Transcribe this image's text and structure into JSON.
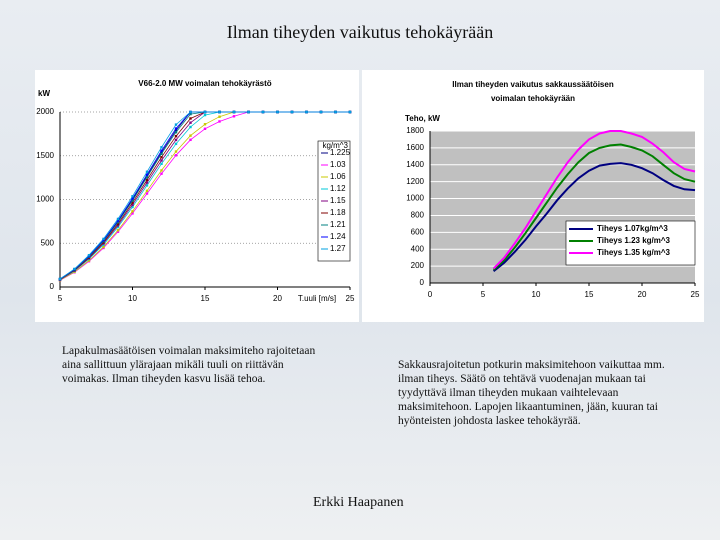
{
  "slide": {
    "title": "Ilman tiheyden vaikutus tehokäyrään",
    "caption_left": "Lapakulmasäätöisen voimalan maksimiteho rajoitetaan aina sallittuun ylärajaan mikäli tuuli on riittävän voimakas. Ilman tiheyden kasvu lisää tehoa.",
    "caption_right": "Sakkausrajoitetun potkurin maksimitehoon vaikuttaa mm. ilman tiheys. Säätö on tehtävä vuodenajan mukaan tai tyydyttävä ilman tiheyden mukaan vaihtelevaan maksimitehoon. Lapojen likaantuminen, jään, kuuran tai hyönteisten johdosta laskee tehokäyrää.",
    "author": "Erkki Haapanen"
  },
  "chart_data": [
    {
      "type": "line",
      "title": [
        "V66-2.0 MW voimalan tehokäyrästö"
      ],
      "y_label": "kW",
      "x_label": "T.uuli [m/s]",
      "legend_title": "kg/m^3",
      "legend": "right",
      "grid": true,
      "markers": true,
      "xlim": [
        5,
        25
      ],
      "xticks": [
        5,
        10,
        15,
        20,
        25
      ],
      "ylim": [
        0,
        2000
      ],
      "yticks": [
        0,
        500,
        1000,
        1500,
        2000
      ],
      "x": [
        5,
        6,
        7,
        8,
        9,
        10,
        11,
        12,
        13,
        14,
        15,
        16,
        17,
        18,
        19,
        20,
        21,
        22,
        23,
        24,
        25
      ],
      "series": [
        {
          "name": "1.225",
          "color": "#000080",
          "values": [
            90,
            200,
            350,
            530,
            750,
            1000,
            1270,
            1540,
            1790,
            2000,
            2000,
            2000,
            2000,
            2000,
            2000,
            2000,
            2000,
            2000,
            2000,
            2000,
            2000
          ]
        },
        {
          "name": "1.03",
          "color": "#ff00ff",
          "values": [
            76,
            168,
            294,
            446,
            631,
            841,
            1068,
            1295,
            1505,
            1682,
            1808,
            1892,
            1951,
            2000,
            2000,
            2000,
            2000,
            2000,
            2000,
            2000,
            2000
          ]
        },
        {
          "name": "1.06",
          "color": "#c8c800",
          "values": [
            78,
            173,
            303,
            458,
            649,
            865,
            1099,
            1332,
            1548,
            1730,
            1860,
            1946,
            2000,
            2000,
            2000,
            2000,
            2000,
            2000,
            2000,
            2000,
            2000
          ]
        },
        {
          "name": "1.12",
          "color": "#00c8d8",
          "values": [
            82,
            183,
            320,
            484,
            686,
            914,
            1161,
            1408,
            1636,
            1828,
            1965,
            2000,
            2000,
            2000,
            2000,
            2000,
            2000,
            2000,
            2000,
            2000,
            2000
          ]
        },
        {
          "name": "1.15",
          "color": "#800080",
          "values": [
            85,
            188,
            329,
            498,
            704,
            939,
            1193,
            1446,
            1681,
            1878,
            2000,
            2000,
            2000,
            2000,
            2000,
            2000,
            2000,
            2000,
            2000,
            2000,
            2000
          ]
        },
        {
          "name": "1.18",
          "color": "#800000",
          "values": [
            87,
            193,
            337,
            510,
            722,
            963,
            1223,
            1483,
            1724,
            1926,
            2000,
            2000,
            2000,
            2000,
            2000,
            2000,
            2000,
            2000,
            2000,
            2000,
            2000
          ]
        },
        {
          "name": "1.21",
          "color": "#008080",
          "values": [
            89,
            198,
            346,
            524,
            741,
            988,
            1255,
            1522,
            1769,
            1976,
            2000,
            2000,
            2000,
            2000,
            2000,
            2000,
            2000,
            2000,
            2000,
            2000,
            2000
          ]
        },
        {
          "name": "1.24",
          "color": "#0000ff",
          "values": [
            91,
            202,
            354,
            536,
            759,
            1012,
            1285,
            1558,
            1811,
            2000,
            2000,
            2000,
            2000,
            2000,
            2000,
            2000,
            2000,
            2000,
            2000,
            2000,
            2000
          ]
        },
        {
          "name": "1.27",
          "color": "#00a0e0",
          "values": [
            93,
            207,
            363,
            550,
            778,
            1037,
            1317,
            1597,
            1856,
            2000,
            2000,
            2000,
            2000,
            2000,
            2000,
            2000,
            2000,
            2000,
            2000,
            2000,
            2000
          ]
        }
      ]
    },
    {
      "type": "line",
      "title": [
        "Ilman tiheyden vaikutus sakkaussäätöisen",
        "voimalan tehokäyrään"
      ],
      "y_label": "Teho, kW",
      "legend": "lower right",
      "grid": true,
      "markers": false,
      "background": "#c0c0c0",
      "xlim": [
        0,
        25
      ],
      "xticks": [
        0,
        5,
        10,
        15,
        20,
        25
      ],
      "ylim": [
        0,
        1800
      ],
      "yticks": [
        0,
        200,
        400,
        600,
        800,
        1000,
        1200,
        1400,
        1600,
        1800
      ],
      "x": [
        6,
        7,
        8,
        9,
        10,
        11,
        12,
        13,
        14,
        15,
        16,
        17,
        18,
        19,
        20,
        21,
        22,
        23,
        24,
        25
      ],
      "series": [
        {
          "name": "Tiheys 1.07kg/m^3",
          "color": "#000080",
          "values": [
            140,
            240,
            370,
            510,
            670,
            820,
            980,
            1120,
            1240,
            1330,
            1390,
            1410,
            1420,
            1400,
            1360,
            1300,
            1220,
            1150,
            1110,
            1100
          ]
        },
        {
          "name": "Tiheys 1.23 kg/m^3",
          "color": "#008000",
          "values": [
            155,
            270,
            420,
            590,
            770,
            950,
            1130,
            1290,
            1430,
            1540,
            1600,
            1630,
            1640,
            1610,
            1570,
            1500,
            1400,
            1300,
            1230,
            1200
          ]
        },
        {
          "name": "Tiheys 1.35 kg/m^3",
          "color": "#ff00ff",
          "values": [
            170,
            300,
            470,
            650,
            850,
            1050,
            1250,
            1430,
            1580,
            1700,
            1770,
            1800,
            1800,
            1770,
            1730,
            1650,
            1550,
            1430,
            1350,
            1320
          ]
        }
      ]
    }
  ]
}
